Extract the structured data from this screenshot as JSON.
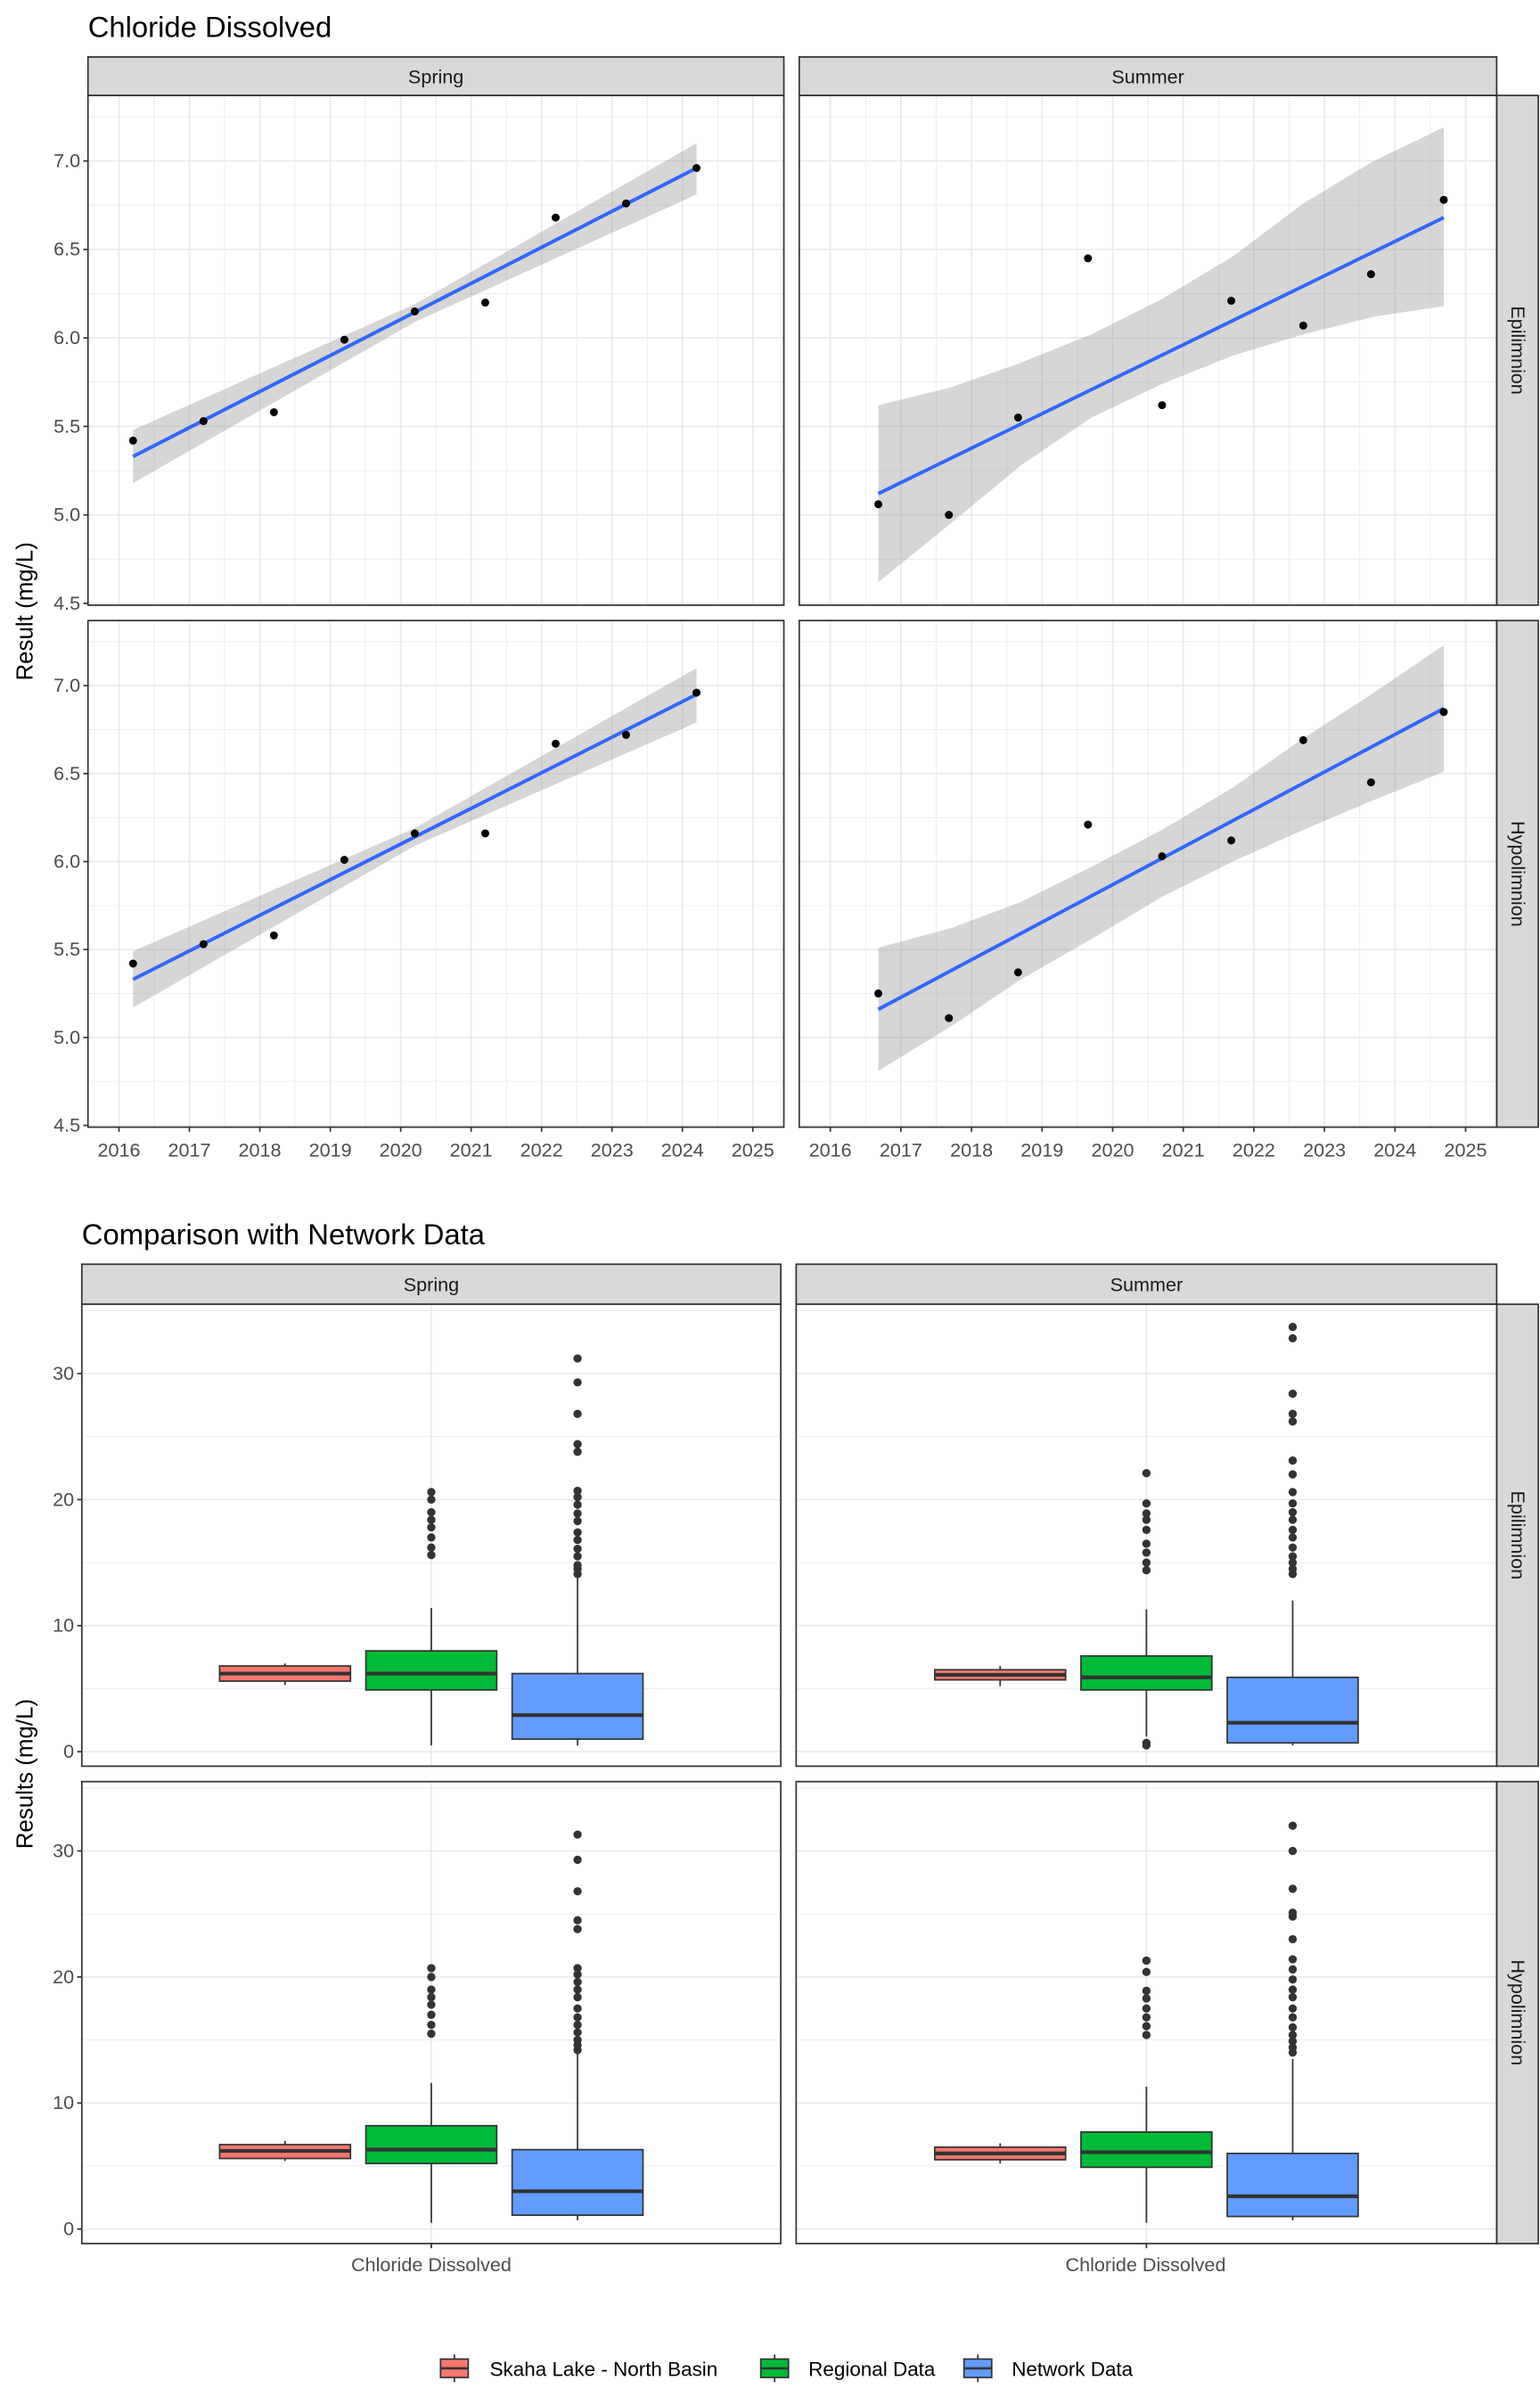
{
  "colors": {
    "skaha": "#F8766D",
    "regional": "#00BA38",
    "network": "#619CFF",
    "fit": "#3366FF",
    "band": "#999999",
    "strip": "#D9D9D9"
  },
  "chart_data": [
    {
      "type": "scatter",
      "title": "Chloride Dissolved",
      "ylabel": "Result (mg/L)",
      "xlabel": "",
      "ylim": [
        4.49,
        7.37
      ],
      "xlim": [
        2015.56,
        2025.44
      ],
      "xticks": [
        "2016",
        "2017",
        "2018",
        "2019",
        "2020",
        "2021",
        "2022",
        "2023",
        "2024",
        "2025"
      ],
      "yticks": [
        "4.5",
        "5.0",
        "5.5",
        "6.0",
        "6.5",
        "7.0"
      ],
      "col_strips": [
        "Spring",
        "Summer"
      ],
      "row_strips": [
        "Epilimnion",
        "Hypolimnion"
      ],
      "panels": [
        {
          "col": 0,
          "row": 0,
          "x": [
            2016.2,
            2017.2,
            2018.2,
            2019.2,
            2020.2,
            2021.2,
            2022.2,
            2023.2,
            2024.2
          ],
          "y": [
            5.42,
            5.53,
            5.58,
            5.99,
            6.15,
            6.2,
            6.68,
            6.76,
            6.96
          ],
          "fit": [
            [
              2016.2,
              5.33
            ],
            [
              2024.2,
              6.96
            ]
          ],
          "band": [
            [
              2016.2,
              5.18,
              5.48
            ],
            [
              2020.2,
              6.09,
              6.19
            ],
            [
              2024.2,
              6.81,
              7.1
            ]
          ]
        },
        {
          "col": 1,
          "row": 0,
          "x": [
            2016.68,
            2017.68,
            2018.66,
            2019.65,
            2020.7,
            2021.68,
            2022.7,
            2023.66,
            2024.69
          ],
          "y": [
            5.06,
            5.0,
            5.55,
            6.45,
            5.62,
            6.21,
            6.07,
            6.36,
            6.78
          ],
          "fit": [
            [
              2016.68,
              5.12
            ],
            [
              2024.69,
              6.68
            ]
          ],
          "band": [
            [
              2016.68,
              4.62,
              5.62
            ],
            [
              2017.7,
              4.95,
              5.72
            ],
            [
              2018.7,
              5.28,
              5.86
            ],
            [
              2019.7,
              5.55,
              6.02
            ],
            [
              2020.7,
              5.74,
              6.22
            ],
            [
              2021.7,
              5.9,
              6.46
            ],
            [
              2022.7,
              6.02,
              6.76
            ],
            [
              2023.7,
              6.12,
              7.0
            ],
            [
              2024.69,
              6.18,
              7.19
            ]
          ]
        },
        {
          "col": 0,
          "row": 1,
          "x": [
            2016.2,
            2017.2,
            2018.2,
            2019.2,
            2020.2,
            2021.2,
            2022.2,
            2023.2,
            2024.2
          ],
          "y": [
            5.42,
            5.53,
            5.58,
            6.01,
            6.16,
            6.16,
            6.67,
            6.72,
            6.96
          ],
          "fit": [
            [
              2016.2,
              5.33
            ],
            [
              2024.2,
              6.95
            ]
          ],
          "band": [
            [
              2016.2,
              5.17,
              5.49
            ],
            [
              2020.2,
              6.09,
              6.19
            ],
            [
              2024.2,
              6.79,
              7.1
            ]
          ]
        },
        {
          "col": 1,
          "row": 1,
          "x": [
            2016.68,
            2017.68,
            2018.66,
            2019.65,
            2020.7,
            2021.68,
            2022.7,
            2023.66,
            2024.69
          ],
          "y": [
            5.25,
            5.11,
            5.37,
            6.21,
            6.03,
            6.12,
            6.69,
            6.45,
            6.85
          ],
          "fit": [
            [
              2016.68,
              5.16
            ],
            [
              2024.69,
              6.87
            ]
          ],
          "band": [
            [
              2016.68,
              4.81,
              5.51
            ],
            [
              2017.7,
              5.06,
              5.62
            ],
            [
              2018.7,
              5.33,
              5.77
            ],
            [
              2019.7,
              5.56,
              5.97
            ],
            [
              2020.7,
              5.8,
              6.18
            ],
            [
              2021.7,
              6.0,
              6.42
            ],
            [
              2022.7,
              6.18,
              6.7
            ],
            [
              2023.7,
              6.35,
              6.96
            ],
            [
              2024.69,
              6.51,
              7.23
            ]
          ]
        }
      ]
    },
    {
      "type": "box",
      "title": "Comparison with Network Data",
      "ylabel": "Results (mg/L)",
      "xlabel": "Chloride Dissolved",
      "ylim": [
        -1.15,
        35.5
      ],
      "yticks": [
        "0",
        "10",
        "20",
        "30"
      ],
      "col_strips": [
        "Spring",
        "Summer"
      ],
      "row_strips": [
        "Epilimnion",
        "Hypolimnion"
      ],
      "legend": {
        "position": "bottom",
        "entries": [
          "Skaha Lake - North Basin",
          "Regional Data",
          "Network Data"
        ]
      },
      "panels": [
        {
          "col": 0,
          "row": 0,
          "boxes": [
            {
              "series": "Skaha Lake - North Basin",
              "lw": 5.3,
              "q1": 5.6,
              "med": 6.2,
              "q3": 6.8,
              "uw": 7.0,
              "out": []
            },
            {
              "series": "Regional Data",
              "lw": 0.5,
              "q1": 4.9,
              "med": 6.2,
              "q3": 8.0,
              "uw": 11.4,
              "out": [
                15.6,
                16.2,
                17.0,
                17.8,
                18.4,
                19.0,
                20.0,
                20.6
              ]
            },
            {
              "series": "Network Data",
              "lw": 0.5,
              "q1": 1.0,
              "med": 2.9,
              "q3": 6.2,
              "uw": 14.0,
              "out": [
                14.1,
                14.5,
                14.8,
                15.5,
                16.1,
                16.8,
                17.4,
                18.3,
                18.9,
                19.6,
                20.2,
                20.7,
                23.8,
                24.4,
                26.8,
                29.3,
                31.2
              ]
            }
          ]
        },
        {
          "col": 1,
          "row": 0,
          "boxes": [
            {
              "series": "Skaha Lake - North Basin",
              "lw": 5.2,
              "q1": 5.7,
              "med": 6.1,
              "q3": 6.5,
              "uw": 6.8,
              "out": []
            },
            {
              "series": "Regional Data",
              "lw": 1.2,
              "q1": 4.9,
              "med": 5.9,
              "q3": 7.6,
              "uw": 11.3,
              "out": [
                0.5,
                0.7,
                14.4,
                15.0,
                15.8,
                16.5,
                17.6,
                18.4,
                18.9,
                19.7,
                22.1
              ]
            },
            {
              "series": "Network Data",
              "lw": 0.5,
              "q1": 0.7,
              "med": 2.3,
              "q3": 5.9,
              "uw": 12.0,
              "out": [
                14.1,
                14.5,
                15.0,
                15.5,
                16.2,
                17.0,
                17.6,
                18.4,
                19.0,
                19.7,
                20.6,
                22.0,
                23.1,
                26.2,
                26.8,
                28.4,
                32.8,
                33.7
              ]
            }
          ]
        },
        {
          "col": 0,
          "row": 1,
          "boxes": [
            {
              "series": "Skaha Lake - North Basin",
              "lw": 5.4,
              "q1": 5.6,
              "med": 6.2,
              "q3": 6.7,
              "uw": 7.0,
              "out": []
            },
            {
              "series": "Regional Data",
              "lw": 0.5,
              "q1": 5.2,
              "med": 6.3,
              "q3": 8.2,
              "uw": 11.6,
              "out": [
                15.5,
                16.2,
                17.0,
                17.8,
                18.4,
                19.0,
                20.0,
                20.7
              ]
            },
            {
              "series": "Network Data",
              "lw": 0.7,
              "q1": 1.1,
              "med": 3.0,
              "q3": 6.3,
              "uw": 14.0,
              "out": [
                14.2,
                14.6,
                15.0,
                15.6,
                16.2,
                16.8,
                17.5,
                18.4,
                19.0,
                19.6,
                20.2,
                20.7,
                23.8,
                24.5,
                26.8,
                29.3,
                31.3
              ]
            }
          ]
        },
        {
          "col": 1,
          "row": 1,
          "boxes": [
            {
              "series": "Skaha Lake - North Basin",
              "lw": 5.2,
              "q1": 5.5,
              "med": 6.0,
              "q3": 6.5,
              "uw": 6.8,
              "out": []
            },
            {
              "series": "Regional Data",
              "lw": 0.5,
              "q1": 4.9,
              "med": 6.1,
              "q3": 7.7,
              "uw": 11.3,
              "out": [
                15.4,
                16.1,
                16.8,
                17.5,
                18.3,
                18.9,
                20.4,
                21.3
              ]
            },
            {
              "series": "Network Data",
              "lw": 0.7,
              "q1": 1.0,
              "med": 2.6,
              "q3": 6.0,
              "uw": 13.5,
              "out": [
                14.0,
                14.4,
                14.9,
                15.4,
                16.0,
                16.8,
                17.5,
                18.4,
                19.0,
                19.8,
                20.6,
                21.4,
                23.0,
                24.8,
                25.1,
                27.0,
                30.0,
                32.0
              ]
            }
          ]
        }
      ]
    }
  ]
}
